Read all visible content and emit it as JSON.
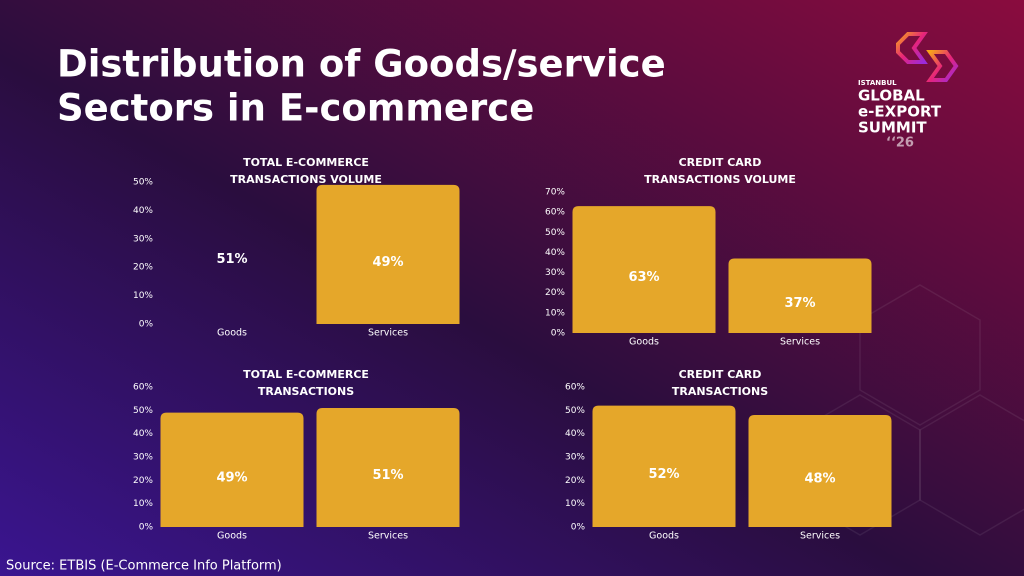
{
  "title": [
    "Distribution of Goods/service",
    "Sectors in E-commerce"
  ],
  "source": "Source: ETBIS (E-Commerce Info Platform)",
  "logo": [
    "ISTANBUL",
    "GLOBAL",
    "e-EXPORT",
    "SUMMIT",
    "‘‘26"
  ],
  "chart_data": [
    {
      "type": "bar",
      "title": [
        "TOTAL E-COMMERCE",
        "TRANSACTIONS VOLUME"
      ],
      "categories": [
        "Goods",
        "Services"
      ],
      "values": [
        51,
        49
      ],
      "value_labels": [
        "51%",
        "49%"
      ],
      "colors": [
        "none",
        "#e5a72a"
      ],
      "ylim": [
        0,
        50
      ],
      "yticks": [
        {
          "value": 0,
          "label": "0%"
        },
        {
          "value": 10,
          "label": "10%"
        },
        {
          "value": 20,
          "label": "20%"
        },
        {
          "value": 30,
          "label": "30%"
        },
        {
          "value": 40,
          "label": "40%"
        },
        {
          "value": 50,
          "label": "50%"
        }
      ]
    },
    {
      "type": "bar",
      "title": [
        "CREDIT CARD",
        "TRANSACTIONS VOLUME"
      ],
      "categories": [
        "Goods",
        "Services"
      ],
      "values": [
        63,
        37
      ],
      "value_labels": [
        "63%",
        "37%"
      ],
      "colors": [
        "#e5a72a",
        "#e5a72a"
      ],
      "ylim": [
        0,
        70
      ],
      "yticks": [
        {
          "value": 0,
          "label": "0%"
        },
        {
          "value": 10,
          "label": "10%"
        },
        {
          "value": 20,
          "label": "20%"
        },
        {
          "value": 30,
          "label": "30%"
        },
        {
          "value": 40,
          "label": "40%"
        },
        {
          "value": 50,
          "label": "50%"
        },
        {
          "value": 60,
          "label": "60%"
        },
        {
          "value": 70,
          "label": "70%"
        }
      ]
    },
    {
      "type": "bar",
      "title": [
        "TOTAL E-COMMERCE",
        "TRANSACTIONS"
      ],
      "categories": [
        "Goods",
        "Services"
      ],
      "values": [
        49,
        51
      ],
      "value_labels": [
        "49%",
        "51%"
      ],
      "colors": [
        "#e5a72a",
        "#e5a72a"
      ],
      "ylim": [
        0,
        60
      ],
      "yticks": [
        {
          "value": 0,
          "label": "0%"
        },
        {
          "value": 10,
          "label": "10%"
        },
        {
          "value": 20,
          "label": "20%"
        },
        {
          "value": 30,
          "label": "30%"
        },
        {
          "value": 40,
          "label": "40%"
        },
        {
          "value": 50,
          "label": "50%"
        },
        {
          "value": 60,
          "label": "60%"
        }
      ]
    },
    {
      "type": "bar",
      "title": [
        "CREDIT CARD",
        "TRANSACTIONS"
      ],
      "categories": [
        "Goods",
        "Services"
      ],
      "values": [
        52,
        48
      ],
      "value_labels": [
        "52%",
        "48%"
      ],
      "colors": [
        "#e5a72a",
        "#e5a72a"
      ],
      "ylim": [
        0,
        60
      ],
      "yticks": [
        {
          "value": 0,
          "label": "0%"
        },
        {
          "value": 10,
          "label": "10%"
        },
        {
          "value": 20,
          "label": "20%"
        },
        {
          "value": 30,
          "label": "30%"
        },
        {
          "value": 40,
          "label": "40%"
        },
        {
          "value": 50,
          "label": "50%"
        },
        {
          "value": 60,
          "label": "60%"
        }
      ]
    }
  ]
}
